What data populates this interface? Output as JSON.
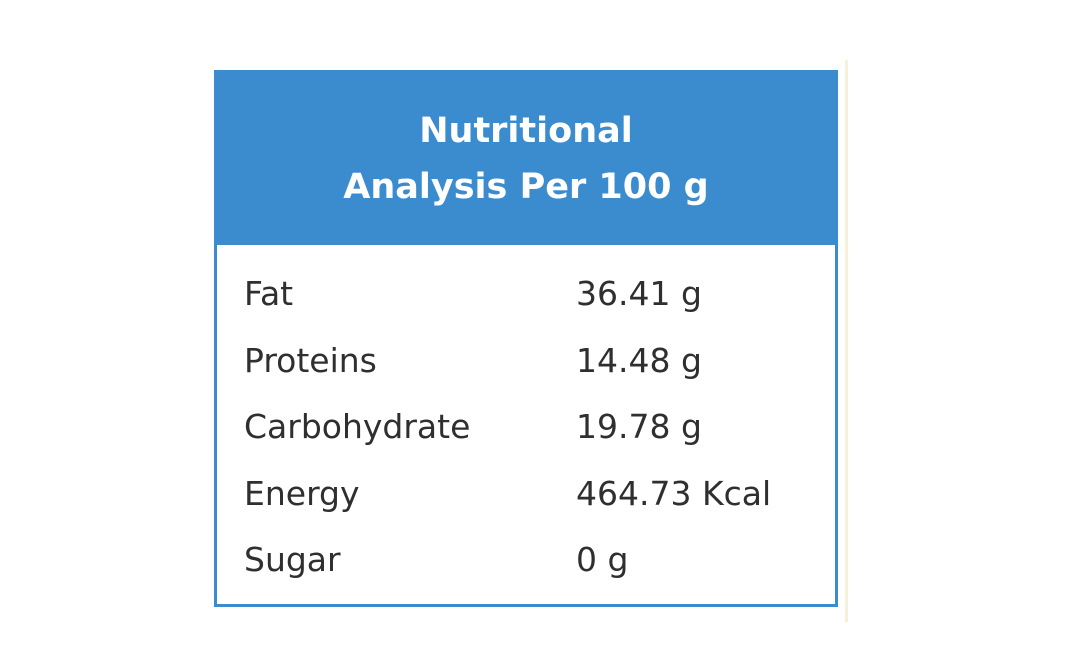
{
  "title": [
    "Nutritional",
    "Analysis Per 100 g"
  ],
  "table": {
    "rows": [
      [
        "Fat",
        "36.41 g"
      ],
      [
        "Proteins",
        "14.48 g"
      ],
      [
        "Carbohydrate",
        "19.78 g"
      ],
      [
        "Energy",
        "464.73 Kcal"
      ],
      [
        "Sugar",
        "0 g"
      ]
    ]
  }
}
